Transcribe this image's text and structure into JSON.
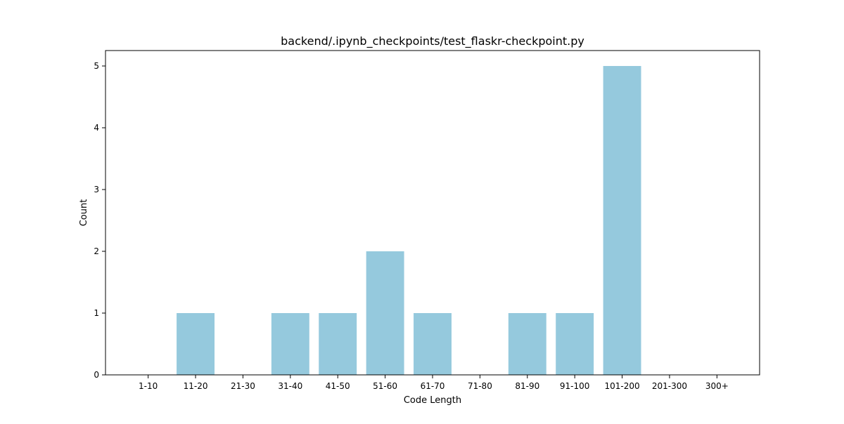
{
  "chart_data": {
    "type": "bar",
    "title": "backend/.ipynb_checkpoints/test_flaskr-checkpoint.py",
    "xlabel": "Code Length",
    "ylabel": "Count",
    "categories": [
      "1-10",
      "11-20",
      "21-30",
      "31-40",
      "41-50",
      "51-60",
      "61-70",
      "71-80",
      "81-90",
      "91-100",
      "101-200",
      "201-300",
      "300+"
    ],
    "values": [
      0,
      1,
      0,
      1,
      1,
      2,
      1,
      0,
      1,
      1,
      5,
      0,
      0
    ],
    "ylim": [
      0,
      5.25
    ],
    "yticks": [
      0,
      1,
      2,
      3,
      4,
      5
    ],
    "bar_color": "#95c9dd",
    "grid": false,
    "legend": "none"
  }
}
